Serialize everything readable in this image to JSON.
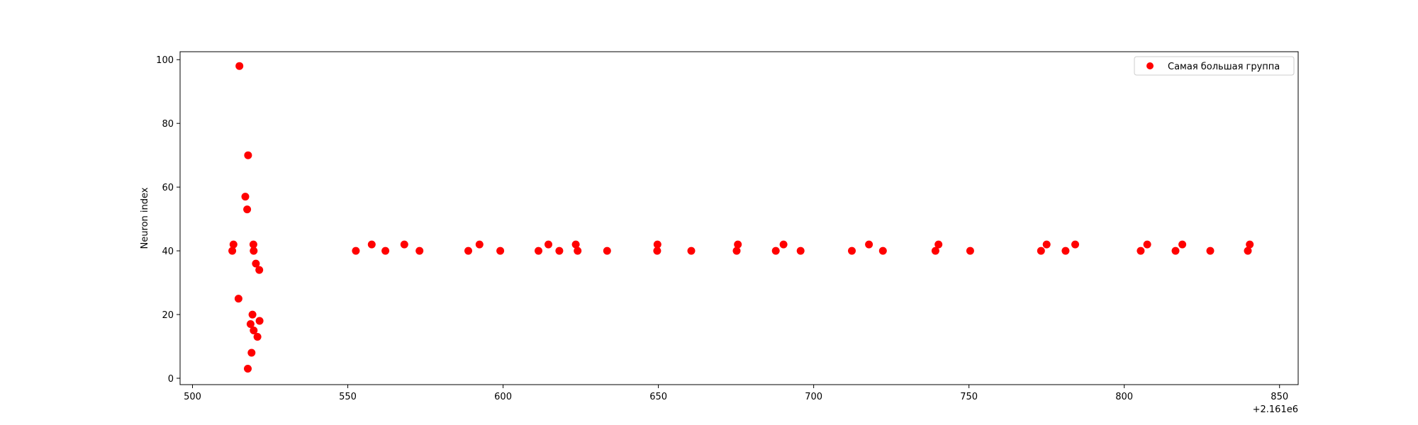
{
  "chart_data": {
    "type": "scatter",
    "title": "",
    "xlabel": "",
    "ylabel": "Neuron index",
    "x_offset_label": "+2.161e6",
    "xlim": [
      496,
      856
    ],
    "ylim": [
      -2,
      102.5
    ],
    "xticks": [
      500,
      550,
      600,
      650,
      700,
      750,
      800,
      850
    ],
    "yticks": [
      0,
      20,
      40,
      60,
      80,
      100
    ],
    "xtick_labels": [
      "500",
      "550",
      "600",
      "650",
      "700",
      "750",
      "800",
      "850"
    ],
    "ytick_labels": [
      "0",
      "20",
      "40",
      "60",
      "80",
      "100"
    ],
    "grid": false,
    "legend_position": "top-right",
    "series": [
      {
        "name": "Самая большая группа",
        "color": "#ff0000",
        "points": [
          [
            512.8,
            40
          ],
          [
            513.2,
            42
          ],
          [
            515.1,
            98
          ],
          [
            514.8,
            25
          ],
          [
            517.0,
            57
          ],
          [
            517.6,
            53
          ],
          [
            517.9,
            70
          ],
          [
            517.8,
            3
          ],
          [
            518.7,
            17
          ],
          [
            519.0,
            8
          ],
          [
            519.3,
            20
          ],
          [
            519.6,
            42
          ],
          [
            519.7,
            40
          ],
          [
            519.7,
            15
          ],
          [
            520.4,
            36
          ],
          [
            520.9,
            13
          ],
          [
            521.5,
            34
          ],
          [
            521.6,
            18
          ],
          [
            552.6,
            40
          ],
          [
            557.7,
            42
          ],
          [
            562.1,
            40
          ],
          [
            568.2,
            42
          ],
          [
            573.1,
            40
          ],
          [
            588.8,
            40
          ],
          [
            592.4,
            42
          ],
          [
            599.1,
            40
          ],
          [
            611.4,
            40
          ],
          [
            614.6,
            42
          ],
          [
            618.1,
            40
          ],
          [
            623.4,
            42
          ],
          [
            624.0,
            40
          ],
          [
            633.5,
            40
          ],
          [
            649.6,
            40
          ],
          [
            649.7,
            42
          ],
          [
            660.6,
            40
          ],
          [
            675.2,
            40
          ],
          [
            675.6,
            42
          ],
          [
            687.8,
            40
          ],
          [
            690.3,
            42
          ],
          [
            695.8,
            40
          ],
          [
            712.3,
            40
          ],
          [
            717.8,
            42
          ],
          [
            722.3,
            40
          ],
          [
            739.2,
            40
          ],
          [
            740.2,
            42
          ],
          [
            750.4,
            40
          ],
          [
            773.2,
            40
          ],
          [
            775.0,
            42
          ],
          [
            781.1,
            40
          ],
          [
            784.2,
            42
          ],
          [
            805.3,
            40
          ],
          [
            807.4,
            42
          ],
          [
            816.5,
            40
          ],
          [
            818.7,
            42
          ],
          [
            827.7,
            40
          ],
          [
            839.8,
            40
          ],
          [
            840.4,
            42
          ]
        ]
      }
    ]
  }
}
